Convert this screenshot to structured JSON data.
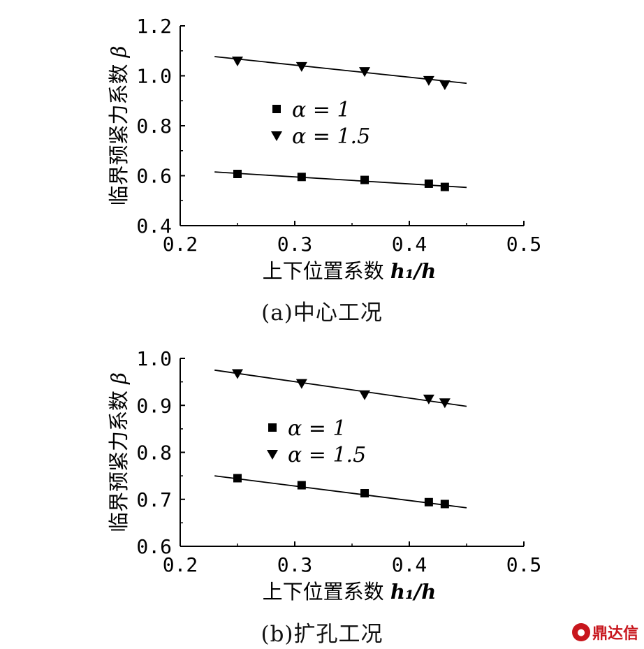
{
  "captions": {
    "a": "(a)中心工况",
    "b": "(b)扩孔工况"
  },
  "watermark": {
    "text": "鼎达信",
    "logo_icon": "dingdaxin-logo-icon"
  },
  "chart_data": [
    {
      "type": "scatter",
      "id": "a",
      "xlabel": "上下位置系数",
      "xlabel_var": "h₁/h",
      "ylabel": "临界预紧力系数",
      "ylabel_var": "β",
      "xlim": [
        0.2,
        0.5
      ],
      "ylim": [
        0.4,
        1.2
      ],
      "xticks": [
        "0.2",
        "0.3",
        "0.4",
        "0.5"
      ],
      "yticks": [
        "0.4",
        "0.6",
        "0.8",
        "1.0",
        "1.2"
      ],
      "grid": false,
      "legend": "center",
      "series": [
        {
          "name": "α = 1",
          "marker": "square",
          "x": [
            0.25,
            0.306,
            0.361,
            0.417,
            0.431
          ],
          "y": [
            0.607,
            0.595,
            0.583,
            0.568,
            0.555
          ],
          "fit": {
            "x": [
              0.23,
              0.45
            ],
            "y": [
              0.615,
              0.553
            ]
          }
        },
        {
          "name": "α = 1.5",
          "marker": "triangle-down",
          "x": [
            0.25,
            0.306,
            0.361,
            0.417,
            0.431
          ],
          "y": [
            1.06,
            1.038,
            1.018,
            0.982,
            0.965
          ],
          "fit": {
            "x": [
              0.23,
              0.45
            ],
            "y": [
              1.077,
              0.97
            ]
          }
        }
      ]
    },
    {
      "type": "scatter",
      "id": "b",
      "xlabel": "上下位置系数",
      "xlabel_var": "h₁/h",
      "ylabel": "临界预紧力系数",
      "ylabel_var": "β",
      "xlim": [
        0.2,
        0.5
      ],
      "ylim": [
        0.6,
        1.0
      ],
      "xticks": [
        "0.2",
        "0.3",
        "0.4",
        "0.5"
      ],
      "yticks": [
        "0.6",
        "0.7",
        "0.8",
        "0.9",
        "1.0"
      ],
      "grid": false,
      "legend": "center",
      "series": [
        {
          "name": "α = 1",
          "marker": "square",
          "x": [
            0.25,
            0.306,
            0.361,
            0.417,
            0.431
          ],
          "y": [
            0.745,
            0.73,
            0.713,
            0.694,
            0.69
          ],
          "fit": {
            "x": [
              0.23,
              0.45
            ],
            "y": [
              0.75,
              0.682
            ]
          }
        },
        {
          "name": "α = 1.5",
          "marker": "triangle-down",
          "x": [
            0.25,
            0.306,
            0.361,
            0.417,
            0.431
          ],
          "y": [
            0.968,
            0.947,
            0.923,
            0.914,
            0.906
          ],
          "fit": {
            "x": [
              0.23,
              0.45
            ],
            "y": [
              0.975,
              0.898
            ]
          }
        }
      ]
    }
  ]
}
